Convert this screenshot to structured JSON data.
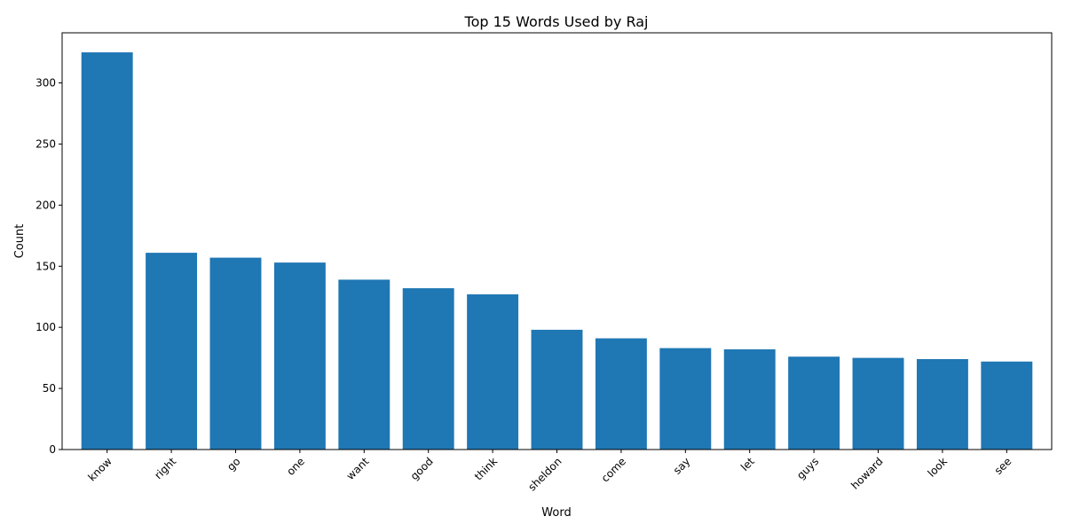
{
  "chart_data": {
    "type": "bar",
    "title": "Top 15 Words Used by Raj",
    "xlabel": "Word",
    "ylabel": "Count",
    "categories": [
      "know",
      "right",
      "go",
      "one",
      "want",
      "good",
      "think",
      "sheldon",
      "come",
      "say",
      "let",
      "guys",
      "howard",
      "look",
      "see"
    ],
    "values": [
      325,
      161,
      157,
      153,
      139,
      132,
      127,
      98,
      91,
      83,
      82,
      76,
      75,
      74,
      72
    ],
    "ylim": [
      0,
      341
    ],
    "yticks": [
      0,
      50,
      100,
      150,
      200,
      250,
      300
    ],
    "grid": false,
    "bar_color": "#1f77b4"
  }
}
